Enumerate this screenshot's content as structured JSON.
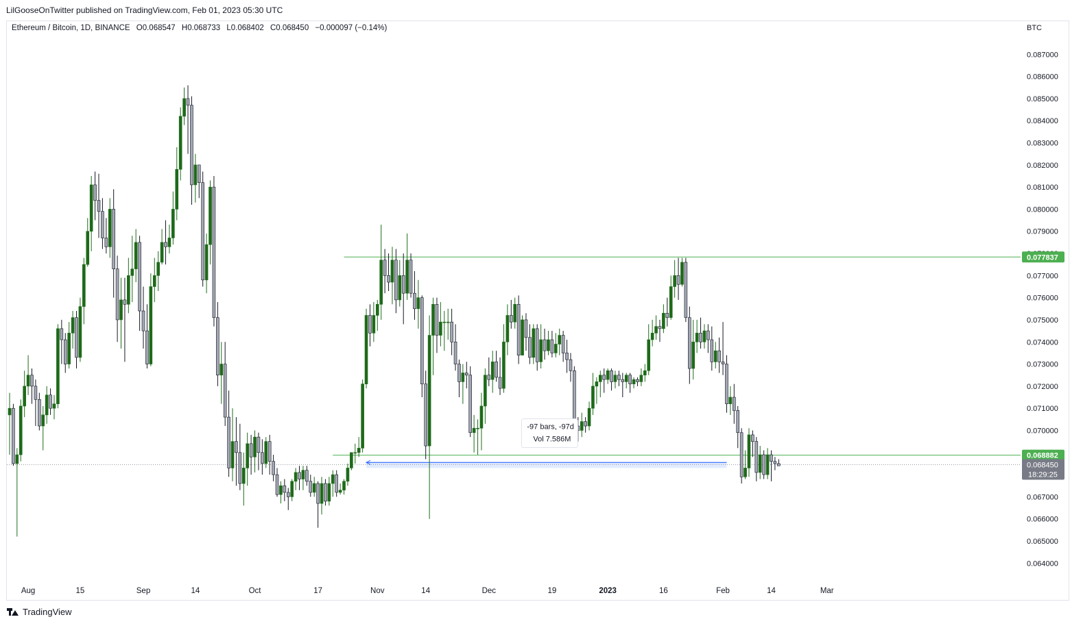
{
  "header": {
    "publisher": "LilGooseOnTwitter published on TradingView.com, Feb 01, 2023 05:30 UTC"
  },
  "symbol": {
    "name": "Ethereum / Bitcoin, 1D, BINANCE",
    "open": "O0.068547",
    "high": "H0.068733",
    "low": "L0.068402",
    "close": "C0.068450",
    "change": "−0.000097 (−0.14%)"
  },
  "footer": {
    "brand": "TradingView"
  },
  "colors": {
    "up": "#1e6a1a",
    "down": "#a3a7b3",
    "line": "#4caf50",
    "range_fill": "#dbe7ff",
    "range_line": "#2962ff",
    "price_tag": "#787b86"
  },
  "chart_data": {
    "type": "candlestick",
    "currency_label": "BTC",
    "ylim": [
      0.0637,
      0.088
    ],
    "y_ticks": [
      "0.087000",
      "0.086000",
      "0.085000",
      "0.084000",
      "0.083000",
      "0.082000",
      "0.081000",
      "0.080000",
      "0.079000",
      "0.078000",
      "0.077000",
      "0.076000",
      "0.075000",
      "0.074000",
      "0.073000",
      "0.072000",
      "0.071000",
      "0.070000",
      "0.069000",
      "0.068000",
      "0.067000",
      "0.066000",
      "0.065000",
      "0.064000"
    ],
    "x_labels": [
      {
        "label": "Aug",
        "index": 5
      },
      {
        "label": "15",
        "index": 19
      },
      {
        "label": "Sep",
        "index": 36
      },
      {
        "label": "14",
        "index": 50
      },
      {
        "label": "Oct",
        "index": 66
      },
      {
        "label": "17",
        "index": 83
      },
      {
        "label": "Nov",
        "index": 99
      },
      {
        "label": "14",
        "index": 112
      },
      {
        "label": "Dec",
        "index": 129
      },
      {
        "label": "19",
        "index": 146
      },
      {
        "label": "2023",
        "index": 161,
        "bold": true
      },
      {
        "label": "16",
        "index": 176
      },
      {
        "label": "Feb",
        "index": 192
      },
      {
        "label": "14",
        "index": 205
      },
      {
        "label": "Mar",
        "index": 220
      }
    ],
    "candles": [
      [
        0.0707,
        0.071,
        0.0689,
        0.0717
      ],
      [
        0.071,
        0.0685,
        0.0684,
        0.0712
      ],
      [
        0.0685,
        0.0689,
        0.0652,
        0.0692
      ],
      [
        0.0689,
        0.0711,
        0.0686,
        0.0714
      ],
      [
        0.0711,
        0.072,
        0.0706,
        0.0727
      ],
      [
        0.072,
        0.0725,
        0.0716,
        0.0734
      ],
      [
        0.0725,
        0.072,
        0.0712,
        0.0728
      ],
      [
        0.072,
        0.0714,
        0.0702,
        0.0723
      ],
      [
        0.0714,
        0.0702,
        0.07,
        0.0717
      ],
      [
        0.0702,
        0.0707,
        0.0691,
        0.0711
      ],
      [
        0.0707,
        0.0716,
        0.0703,
        0.072
      ],
      [
        0.0716,
        0.071,
        0.0707,
        0.0719
      ],
      [
        0.071,
        0.0712,
        0.0705,
        0.0716
      ],
      [
        0.0712,
        0.0746,
        0.071,
        0.0748
      ],
      [
        0.0746,
        0.0741,
        0.073,
        0.075
      ],
      [
        0.0741,
        0.073,
        0.0726,
        0.0744
      ],
      [
        0.073,
        0.0744,
        0.0728,
        0.0749
      ],
      [
        0.0744,
        0.0751,
        0.0737,
        0.0754
      ],
      [
        0.0751,
        0.0733,
        0.0728,
        0.0754
      ],
      [
        0.0733,
        0.0756,
        0.0731,
        0.076
      ],
      [
        0.0756,
        0.0775,
        0.0748,
        0.0778
      ],
      [
        0.0775,
        0.079,
        0.0774,
        0.0796
      ],
      [
        0.079,
        0.0811,
        0.0781,
        0.0815
      ],
      [
        0.0811,
        0.0804,
        0.0795,
        0.0817
      ],
      [
        0.0804,
        0.0799,
        0.0787,
        0.0816
      ],
      [
        0.0799,
        0.0787,
        0.0782,
        0.0805
      ],
      [
        0.0787,
        0.0783,
        0.078,
        0.0796
      ],
      [
        0.0783,
        0.08,
        0.0778,
        0.0805
      ],
      [
        0.08,
        0.0773,
        0.076,
        0.0809
      ],
      [
        0.0773,
        0.075,
        0.074,
        0.0779
      ],
      [
        0.075,
        0.0759,
        0.0737,
        0.0769
      ],
      [
        0.0759,
        0.0757,
        0.0731,
        0.0769
      ],
      [
        0.0757,
        0.077,
        0.0753,
        0.0778
      ],
      [
        0.077,
        0.0773,
        0.0758,
        0.0788
      ],
      [
        0.0773,
        0.0785,
        0.0767,
        0.0791
      ],
      [
        0.0785,
        0.0754,
        0.0745,
        0.0788
      ],
      [
        0.0754,
        0.0745,
        0.0737,
        0.0765
      ],
      [
        0.0745,
        0.073,
        0.0728,
        0.0757
      ],
      [
        0.073,
        0.0765,
        0.0729,
        0.0771
      ],
      [
        0.0765,
        0.077,
        0.0758,
        0.0778
      ],
      [
        0.077,
        0.0776,
        0.0763,
        0.0781
      ],
      [
        0.0776,
        0.0785,
        0.0775,
        0.0791
      ],
      [
        0.0785,
        0.0783,
        0.0775,
        0.0795
      ],
      [
        0.0783,
        0.0787,
        0.078,
        0.0793
      ],
      [
        0.0787,
        0.08,
        0.0784,
        0.0808
      ],
      [
        0.08,
        0.0818,
        0.0795,
        0.0828
      ],
      [
        0.0818,
        0.0842,
        0.0813,
        0.0846
      ],
      [
        0.0842,
        0.085,
        0.0838,
        0.0855
      ],
      [
        0.085,
        0.0847,
        0.0825,
        0.0856
      ],
      [
        0.0847,
        0.0811,
        0.0802,
        0.0851
      ],
      [
        0.0811,
        0.082,
        0.0803,
        0.0825
      ],
      [
        0.082,
        0.0812,
        0.0805,
        0.082
      ],
      [
        0.0812,
        0.0768,
        0.0765,
        0.0817
      ],
      [
        0.0768,
        0.0784,
        0.0762,
        0.0789
      ],
      [
        0.0784,
        0.081,
        0.0775,
        0.0813
      ],
      [
        0.081,
        0.0751,
        0.0747,
        0.0815
      ],
      [
        0.0751,
        0.0725,
        0.072,
        0.0758
      ],
      [
        0.0725,
        0.073,
        0.0712,
        0.074
      ],
      [
        0.073,
        0.0706,
        0.0702,
        0.074
      ],
      [
        0.0706,
        0.0683,
        0.0679,
        0.0718
      ],
      [
        0.0683,
        0.0695,
        0.0677,
        0.071
      ],
      [
        0.0695,
        0.069,
        0.0675,
        0.0706
      ],
      [
        0.069,
        0.0676,
        0.0673,
        0.0703
      ],
      [
        0.0676,
        0.0683,
        0.0666,
        0.069
      ],
      [
        0.0683,
        0.0694,
        0.0675,
        0.0699
      ],
      [
        0.0694,
        0.0688,
        0.068,
        0.0698
      ],
      [
        0.0688,
        0.0697,
        0.0681,
        0.07
      ],
      [
        0.0697,
        0.069,
        0.0682,
        0.0699
      ],
      [
        0.069,
        0.0685,
        0.068,
        0.0696
      ],
      [
        0.0685,
        0.0695,
        0.0683,
        0.0697
      ],
      [
        0.0695,
        0.0686,
        0.068,
        0.0698
      ],
      [
        0.0686,
        0.068,
        0.0677,
        0.0689
      ],
      [
        0.068,
        0.0671,
        0.067,
        0.0683
      ],
      [
        0.0671,
        0.0675,
        0.0667,
        0.0677
      ],
      [
        0.0675,
        0.0672,
        0.0668,
        0.0678
      ],
      [
        0.0672,
        0.067,
        0.0664,
        0.0674
      ],
      [
        0.067,
        0.0677,
        0.0668,
        0.0678
      ],
      [
        0.0677,
        0.0681,
        0.0673,
        0.0683
      ],
      [
        0.0681,
        0.0678,
        0.0673,
        0.0684
      ],
      [
        0.0678,
        0.0682,
        0.0673,
        0.0684
      ],
      [
        0.0682,
        0.0677,
        0.0675,
        0.0684
      ],
      [
        0.0677,
        0.0672,
        0.067,
        0.068
      ],
      [
        0.0672,
        0.0676,
        0.067,
        0.0679
      ],
      [
        0.0676,
        0.0667,
        0.0656,
        0.0677
      ],
      [
        0.0667,
        0.0676,
        0.0662,
        0.0679
      ],
      [
        0.0676,
        0.0668,
        0.0666,
        0.0678
      ],
      [
        0.0668,
        0.0676,
        0.0666,
        0.0679
      ],
      [
        0.0676,
        0.068,
        0.067,
        0.0682
      ],
      [
        0.068,
        0.0672,
        0.067,
        0.0682
      ],
      [
        0.0672,
        0.0673,
        0.0671,
        0.0676
      ],
      [
        0.0673,
        0.0677,
        0.0671,
        0.0678
      ],
      [
        0.0677,
        0.0683,
        0.0675,
        0.0685
      ],
      [
        0.0683,
        0.069,
        0.0682,
        0.069
      ],
      [
        0.069,
        0.069,
        0.0685,
        0.0694
      ],
      [
        0.069,
        0.0692,
        0.0688,
        0.0697
      ],
      [
        0.0692,
        0.0721,
        0.069,
        0.0723
      ],
      [
        0.0721,
        0.0752,
        0.0719,
        0.0755
      ],
      [
        0.0752,
        0.0744,
        0.0738,
        0.0757
      ],
      [
        0.0744,
        0.0752,
        0.074,
        0.0758
      ],
      [
        0.0752,
        0.0757,
        0.0745,
        0.0759
      ],
      [
        0.0757,
        0.0777,
        0.075,
        0.0793
      ],
      [
        0.0777,
        0.077,
        0.0762,
        0.0782
      ],
      [
        0.077,
        0.0767,
        0.0763,
        0.078
      ],
      [
        0.0767,
        0.0777,
        0.0757,
        0.0783
      ],
      [
        0.0777,
        0.0759,
        0.0753,
        0.0782
      ],
      [
        0.0759,
        0.077,
        0.0756,
        0.0777
      ],
      [
        0.077,
        0.0762,
        0.0748,
        0.078
      ],
      [
        0.0762,
        0.0777,
        0.0759,
        0.0789
      ],
      [
        0.0777,
        0.0762,
        0.076,
        0.078
      ],
      [
        0.0762,
        0.0755,
        0.075,
        0.0772
      ],
      [
        0.0755,
        0.076,
        0.0746,
        0.0768
      ],
      [
        0.076,
        0.0721,
        0.0715,
        0.0761
      ],
      [
        0.0721,
        0.0693,
        0.0687,
        0.0727
      ],
      [
        0.0693,
        0.0743,
        0.066,
        0.0752
      ],
      [
        0.0743,
        0.0757,
        0.0725,
        0.076
      ],
      [
        0.0757,
        0.0743,
        0.0735,
        0.076
      ],
      [
        0.0743,
        0.0749,
        0.0738,
        0.0758
      ],
      [
        0.0749,
        0.0749,
        0.0736,
        0.0754
      ],
      [
        0.0749,
        0.0749,
        0.0741,
        0.0755
      ],
      [
        0.0749,
        0.074,
        0.0734,
        0.0755
      ],
      [
        0.074,
        0.073,
        0.0727,
        0.0748
      ],
      [
        0.073,
        0.0722,
        0.0715,
        0.0732
      ],
      [
        0.0722,
        0.0726,
        0.0712,
        0.073
      ],
      [
        0.0726,
        0.0725,
        0.0719,
        0.0731
      ],
      [
        0.0725,
        0.0699,
        0.0697,
        0.0729
      ],
      [
        0.0699,
        0.0701,
        0.069,
        0.0707
      ],
      [
        0.0701,
        0.0701,
        0.0689,
        0.0705
      ],
      [
        0.0701,
        0.0711,
        0.0691,
        0.0717
      ],
      [
        0.0711,
        0.0725,
        0.0703,
        0.0728
      ],
      [
        0.0725,
        0.0723,
        0.072,
        0.0733
      ],
      [
        0.0723,
        0.0731,
        0.0717,
        0.0736
      ],
      [
        0.0731,
        0.0724,
        0.0722,
        0.0736
      ],
      [
        0.0724,
        0.0719,
        0.0716,
        0.0733
      ],
      [
        0.0719,
        0.074,
        0.0717,
        0.0748
      ],
      [
        0.074,
        0.0752,
        0.0734,
        0.0757
      ],
      [
        0.0752,
        0.0749,
        0.0746,
        0.0759
      ],
      [
        0.0749,
        0.0757,
        0.0746,
        0.076
      ],
      [
        0.0757,
        0.0734,
        0.073,
        0.0761
      ],
      [
        0.0734,
        0.075,
        0.0734,
        0.0752
      ],
      [
        0.075,
        0.0742,
        0.0736,
        0.0753
      ],
      [
        0.0742,
        0.0733,
        0.073,
        0.0748
      ],
      [
        0.0733,
        0.0746,
        0.073,
        0.0748
      ],
      [
        0.0746,
        0.0731,
        0.0727,
        0.0748
      ],
      [
        0.0731,
        0.0741,
        0.0728,
        0.0748
      ],
      [
        0.0741,
        0.0736,
        0.0732,
        0.0746
      ],
      [
        0.0736,
        0.0741,
        0.0734,
        0.0745
      ],
      [
        0.0741,
        0.0735,
        0.0733,
        0.0745
      ],
      [
        0.0735,
        0.0739,
        0.0733,
        0.0744
      ],
      [
        0.0739,
        0.0743,
        0.0734,
        0.0746
      ],
      [
        0.0743,
        0.0735,
        0.0731,
        0.0745
      ],
      [
        0.0735,
        0.0732,
        0.0726,
        0.0741
      ],
      [
        0.0732,
        0.0727,
        0.0722,
        0.0735
      ],
      [
        0.0727,
        0.0702,
        0.0699,
        0.0729
      ],
      [
        0.0702,
        0.07,
        0.0695,
        0.0706
      ],
      [
        0.07,
        0.0704,
        0.0697,
        0.0708
      ],
      [
        0.0704,
        0.0702,
        0.0699,
        0.0706
      ],
      [
        0.0702,
        0.071,
        0.07,
        0.0713
      ],
      [
        0.071,
        0.072,
        0.0707,
        0.0726
      ],
      [
        0.072,
        0.0722,
        0.0712,
        0.0724
      ],
      [
        0.0722,
        0.0725,
        0.0715,
        0.0727
      ],
      [
        0.0725,
        0.0723,
        0.0717,
        0.0728
      ],
      [
        0.0723,
        0.0727,
        0.0721,
        0.0728
      ],
      [
        0.0727,
        0.0722,
        0.0718,
        0.0728
      ],
      [
        0.0722,
        0.0725,
        0.0719,
        0.0727
      ],
      [
        0.0725,
        0.0723,
        0.072,
        0.0727
      ],
      [
        0.0723,
        0.0722,
        0.0715,
        0.0726
      ],
      [
        0.0722,
        0.0725,
        0.0719,
        0.0726
      ],
      [
        0.0725,
        0.0721,
        0.0717,
        0.0726
      ],
      [
        0.0721,
        0.0723,
        0.0719,
        0.0724
      ],
      [
        0.0723,
        0.0722,
        0.072,
        0.0724
      ],
      [
        0.0722,
        0.0725,
        0.072,
        0.0728
      ],
      [
        0.0725,
        0.0727,
        0.0722,
        0.073
      ],
      [
        0.0727,
        0.0741,
        0.0725,
        0.0748
      ],
      [
        0.0741,
        0.0744,
        0.0738,
        0.075
      ],
      [
        0.0744,
        0.0747,
        0.0741,
        0.0752
      ],
      [
        0.0747,
        0.0746,
        0.074,
        0.075
      ],
      [
        0.0746,
        0.0753,
        0.0744,
        0.0757
      ],
      [
        0.0753,
        0.0751,
        0.0747,
        0.076
      ],
      [
        0.0751,
        0.0765,
        0.075,
        0.077
      ],
      [
        0.0765,
        0.077,
        0.076,
        0.0777
      ],
      [
        0.077,
        0.0766,
        0.0759,
        0.0778
      ],
      [
        0.0766,
        0.0776,
        0.0765,
        0.0778
      ],
      [
        0.0776,
        0.0751,
        0.0749,
        0.0778
      ],
      [
        0.0751,
        0.0728,
        0.0721,
        0.0756
      ],
      [
        0.0728,
        0.074,
        0.0723,
        0.075
      ],
      [
        0.074,
        0.0744,
        0.0735,
        0.075
      ],
      [
        0.0744,
        0.074,
        0.0737,
        0.0751
      ],
      [
        0.074,
        0.0745,
        0.0737,
        0.0748
      ],
      [
        0.0745,
        0.0741,
        0.0735,
        0.0748
      ],
      [
        0.0741,
        0.0731,
        0.0727,
        0.0747
      ],
      [
        0.0731,
        0.0736,
        0.0728,
        0.074
      ],
      [
        0.0736,
        0.0731,
        0.0726,
        0.0742
      ],
      [
        0.0731,
        0.073,
        0.0725,
        0.0749
      ],
      [
        0.073,
        0.0712,
        0.0708,
        0.0734
      ],
      [
        0.0712,
        0.0715,
        0.0707,
        0.072
      ],
      [
        0.0715,
        0.0709,
        0.0703,
        0.0721
      ],
      [
        0.0709,
        0.0699,
        0.0692,
        0.0711
      ],
      [
        0.0699,
        0.0679,
        0.0676,
        0.0701
      ],
      [
        0.0679,
        0.0683,
        0.0678,
        0.0691
      ],
      [
        0.0683,
        0.0698,
        0.0679,
        0.0701
      ],
      [
        0.0698,
        0.0695,
        0.0688,
        0.07
      ],
      [
        0.0695,
        0.0681,
        0.0677,
        0.0697
      ],
      [
        0.0681,
        0.0689,
        0.0678,
        0.0693
      ],
      [
        0.0689,
        0.068,
        0.0678,
        0.0691
      ],
      [
        0.068,
        0.0689,
        0.0678,
        0.0692
      ],
      [
        0.0689,
        0.0686,
        0.0677,
        0.0691
      ],
      [
        0.0686,
        0.0685,
        0.0682,
        0.0688
      ],
      [
        0.0685,
        0.0684,
        0.0684,
        0.0687
      ]
    ],
    "last_price": "0.068450",
    "countdown": "18:29:25",
    "horizontal_lines": [
      {
        "price": 0.077837,
        "label": "0.077837",
        "start_index": 90
      },
      {
        "price": 0.068882,
        "label": "0.068882",
        "start_index": 87
      }
    ],
    "measure_box": {
      "start_index": 96,
      "end_index": 193,
      "price_top": 0.0686,
      "price_bottom": 0.0683
    },
    "tooltip": {
      "line1": "-97 bars, -97d",
      "line2": "Vol 7.586M",
      "anchor_index": 140,
      "anchor_price": 0.0704
    }
  }
}
